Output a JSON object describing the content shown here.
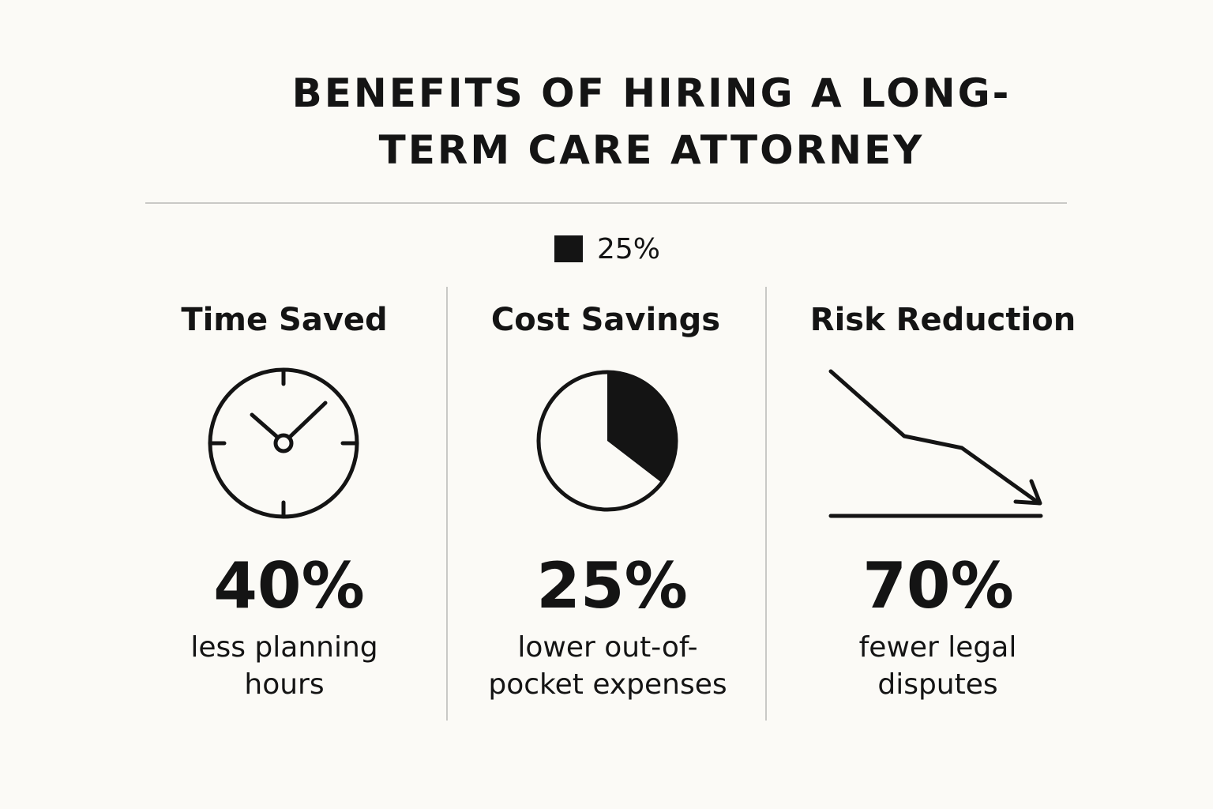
{
  "header": {
    "title": "BENEFITS OF HIRING A LONG-TERM CARE ATTORNEY"
  },
  "legend": {
    "label": "25%"
  },
  "columns": [
    {
      "title": "Time Saved",
      "value": "40%",
      "description": "less planning hours"
    },
    {
      "title": "Cost Savings",
      "value": "25%",
      "description": "lower out-of-pocket expenses"
    },
    {
      "title": "Risk Reduction",
      "value": "70%",
      "description": "fewer legal disputes"
    }
  ]
}
